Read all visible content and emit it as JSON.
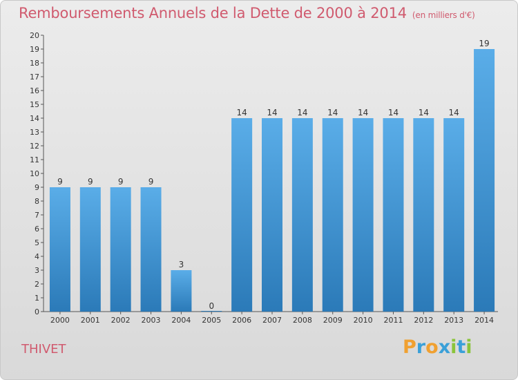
{
  "chart_data": {
    "type": "bar",
    "title": "Remboursements Annuels de la Dette de 2000 à 2014",
    "unit": "(en milliers d'€)",
    "categories": [
      "2000",
      "2001",
      "2002",
      "2003",
      "2004",
      "2005",
      "2006",
      "2007",
      "2008",
      "2009",
      "2010",
      "2011",
      "2012",
      "2013",
      "2014"
    ],
    "values": [
      9,
      9,
      9,
      9,
      3,
      0,
      14,
      14,
      14,
      14,
      14,
      14,
      14,
      14,
      19
    ],
    "ylim": [
      0,
      20
    ],
    "yticks": [
      0,
      1,
      2,
      3,
      4,
      5,
      6,
      7,
      8,
      9,
      10,
      11,
      12,
      13,
      14,
      15,
      16,
      17,
      18,
      19,
      20
    ],
    "grid": false,
    "bar_color_top": "#5aade8",
    "bar_color_bottom": "#2b7ab8"
  },
  "place_name": "THIVET",
  "logo": {
    "letters": [
      "P",
      "r",
      "o",
      "x",
      "i",
      "t",
      "i"
    ],
    "colors": [
      "#f0a030",
      "#3aa0d8",
      "#f0a030",
      "#3aa0d8",
      "#8ac43a",
      "#3aa0d8",
      "#8ac43a"
    ]
  }
}
